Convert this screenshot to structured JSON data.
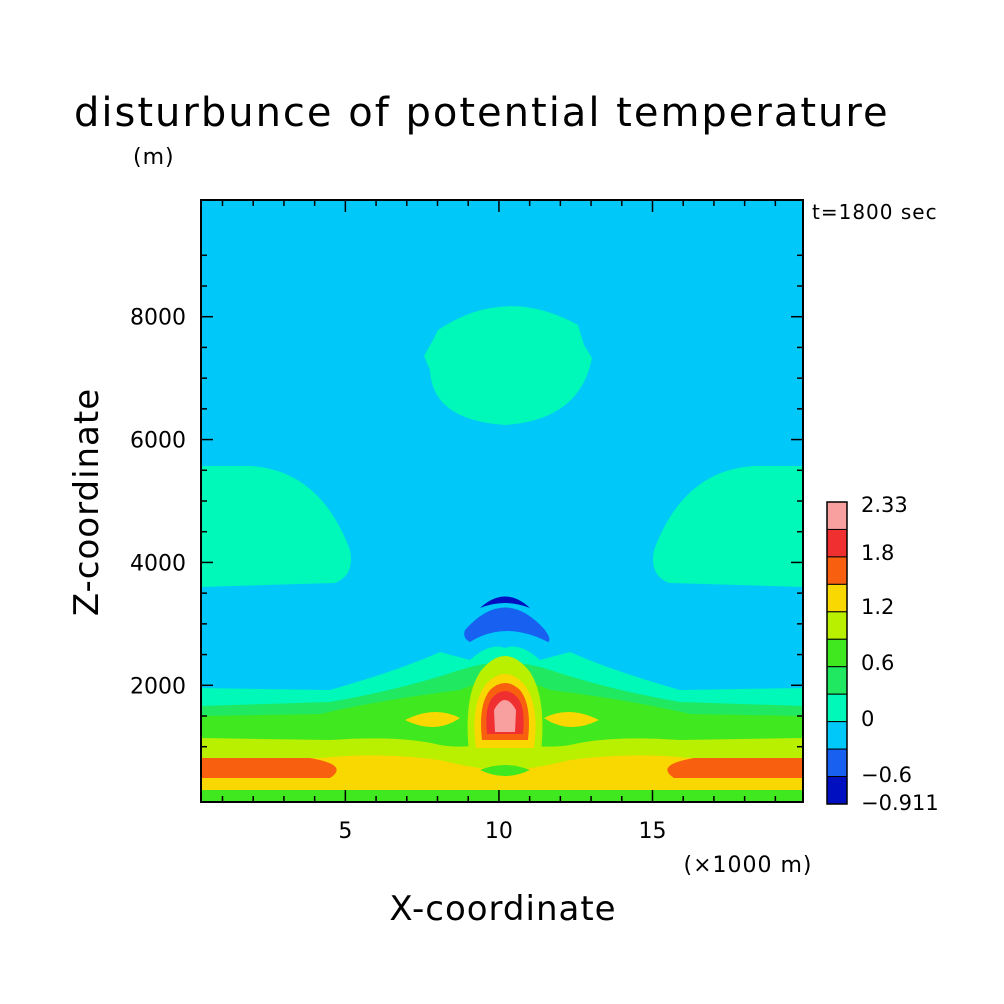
{
  "chart_data": {
    "type": "heatmap",
    "title": "disturbunce of potential temperature",
    "z_unit": "(m)",
    "time_label": "t=1800 sec",
    "xlabel": "X-coordinate",
    "ylabel": "Z-coordinate",
    "x_unit": "(×1000 m)",
    "xlim": [
      0.3,
      19.9
    ],
    "ylim": [
      100,
      9900
    ],
    "x_ticks": [
      5,
      10,
      15
    ],
    "y_ticks": [
      2000,
      4000,
      6000,
      8000
    ],
    "colorbar": {
      "labels": [
        "2.33",
        "1.8",
        "1.2",
        "0.6",
        "0",
        "-0.6",
        "-0.911"
      ],
      "levels": [
        {
          "range": [
            2.1,
            2.33
          ],
          "color": "#f8a0a0"
        },
        {
          "range": [
            1.8,
            2.1
          ],
          "color": "#f03030"
        },
        {
          "range": [
            1.5,
            1.8
          ],
          "color": "#f86010"
        },
        {
          "range": [
            1.2,
            1.5
          ],
          "color": "#f8d800"
        },
        {
          "range": [
            0.9,
            1.2
          ],
          "color": "#b8f000"
        },
        {
          "range": [
            0.6,
            0.9
          ],
          "color": "#40e820"
        },
        {
          "range": [
            0.3,
            0.6
          ],
          "color": "#20e860"
        },
        {
          "range": [
            0.0,
            0.3
          ],
          "color": "#00f8b8"
        },
        {
          "range": [
            -0.3,
            0.0
          ],
          "color": "#00c8f8"
        },
        {
          "range": [
            -0.6,
            -0.3
          ],
          "color": "#1860f0"
        },
        {
          "range": [
            -0.911,
            -0.6
          ],
          "color": "#0010c0"
        }
      ]
    },
    "features": [
      {
        "kind": "warm_core",
        "x": 10.1,
        "z": 1450,
        "max": 2.33
      },
      {
        "kind": "cold_cap",
        "x": 10.1,
        "z": 3100,
        "min": -0.911
      },
      {
        "kind": "warm_blob_upper",
        "x": 10.2,
        "z": 7300,
        "value_range": [
          0.0,
          0.3
        ]
      },
      {
        "kind": "warm_blobs_sides",
        "x": [
          2.0,
          18.0
        ],
        "z": 4600,
        "value_range": [
          0.0,
          0.3
        ]
      },
      {
        "kind": "warm_surface_layers",
        "z_range": [
          100,
          1900
        ],
        "value_range": [
          0.3,
          2.1
        ]
      }
    ]
  }
}
